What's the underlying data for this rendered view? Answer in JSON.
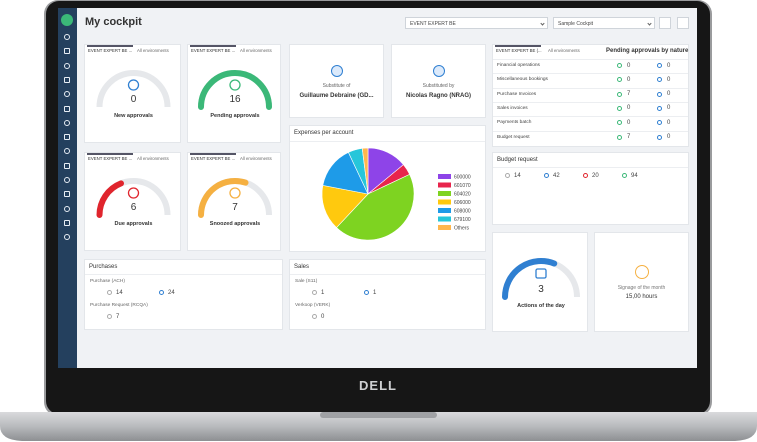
{
  "header": {
    "title": "My cockpit",
    "selects": [
      "EVENT EXPERT BE",
      "Sample Cockpit"
    ]
  },
  "brand": "DELL",
  "approval_cards": [
    {
      "tab": "EVENT EXPERT BE ...",
      "link": "All environments",
      "count": 0,
      "label": "New approvals",
      "color": "#2f7fd1"
    },
    {
      "tab": "EVENT EXPERT BE ...",
      "link": "All environments",
      "count": 16,
      "label": "Pending approvals",
      "color": "#3bb878"
    },
    {
      "tab": "EVENT EXPERT BE ...",
      "link": "All environments",
      "count": 6,
      "label": "Due approvals",
      "color": "#e0252d"
    },
    {
      "tab": "EVENT EXPERT BE ...",
      "link": "All environments",
      "count": 7,
      "label": "Snoozed approvals",
      "color": "#f5b041"
    }
  ],
  "substitutes": [
    {
      "label": "Substitute of",
      "name": "Guillaume Debraine (GD..."
    },
    {
      "label": "Substituted by",
      "name": "Nicolas Ragno (NRAG)"
    }
  ],
  "pending_by_nature": {
    "tab": "EVENT EXPERT BE (...",
    "link": "All environments",
    "title": "Pending approvals by nature",
    "rows": [
      {
        "label": "Financial operations",
        "pending": 0,
        "other": 0
      },
      {
        "label": "Miscellaneous bookings",
        "pending": 0,
        "other": 0
      },
      {
        "label": "Purchase Invoices",
        "pending": 7,
        "other": 0
      },
      {
        "label": "Sales invoices",
        "pending": 0,
        "other": 0
      },
      {
        "label": "Payments batch",
        "pending": 0,
        "other": 0
      },
      {
        "label": "Budget request",
        "pending": 7,
        "other": 0
      }
    ]
  },
  "budget_request": {
    "title": "Budget request",
    "items": [
      14,
      42,
      20,
      94
    ]
  },
  "chart_data": {
    "type": "pie",
    "title": "Expenses per account",
    "categories": [
      "600000",
      "601070",
      "604020",
      "606000",
      "608000",
      "679100",
      "Others"
    ],
    "values": [
      14,
      4,
      44,
      16,
      15,
      5,
      2
    ],
    "colors": [
      "#8e44e8",
      "#e8244c",
      "#7ed321",
      "#ffc90e",
      "#1e9be8",
      "#26c6da",
      "#ffb74d"
    ]
  },
  "purchases": {
    "title": "Purchases",
    "groups": [
      {
        "name": "Purchase (ACH)",
        "items": [
          14,
          24
        ]
      },
      {
        "name": "Purchase Request (RCQA)",
        "items": [
          7
        ]
      }
    ]
  },
  "sales": {
    "title": "Sales",
    "groups": [
      {
        "name": "Sale (S11)",
        "items": [
          1,
          1
        ]
      },
      {
        "name": "Verkoop (VERK)",
        "items": [
          0
        ]
      }
    ]
  },
  "actions": {
    "count": 3,
    "label": "Actions of the day",
    "color": "#2f7fd1"
  },
  "signage": {
    "label": "Signage of the month",
    "value": "15,00 hours"
  }
}
